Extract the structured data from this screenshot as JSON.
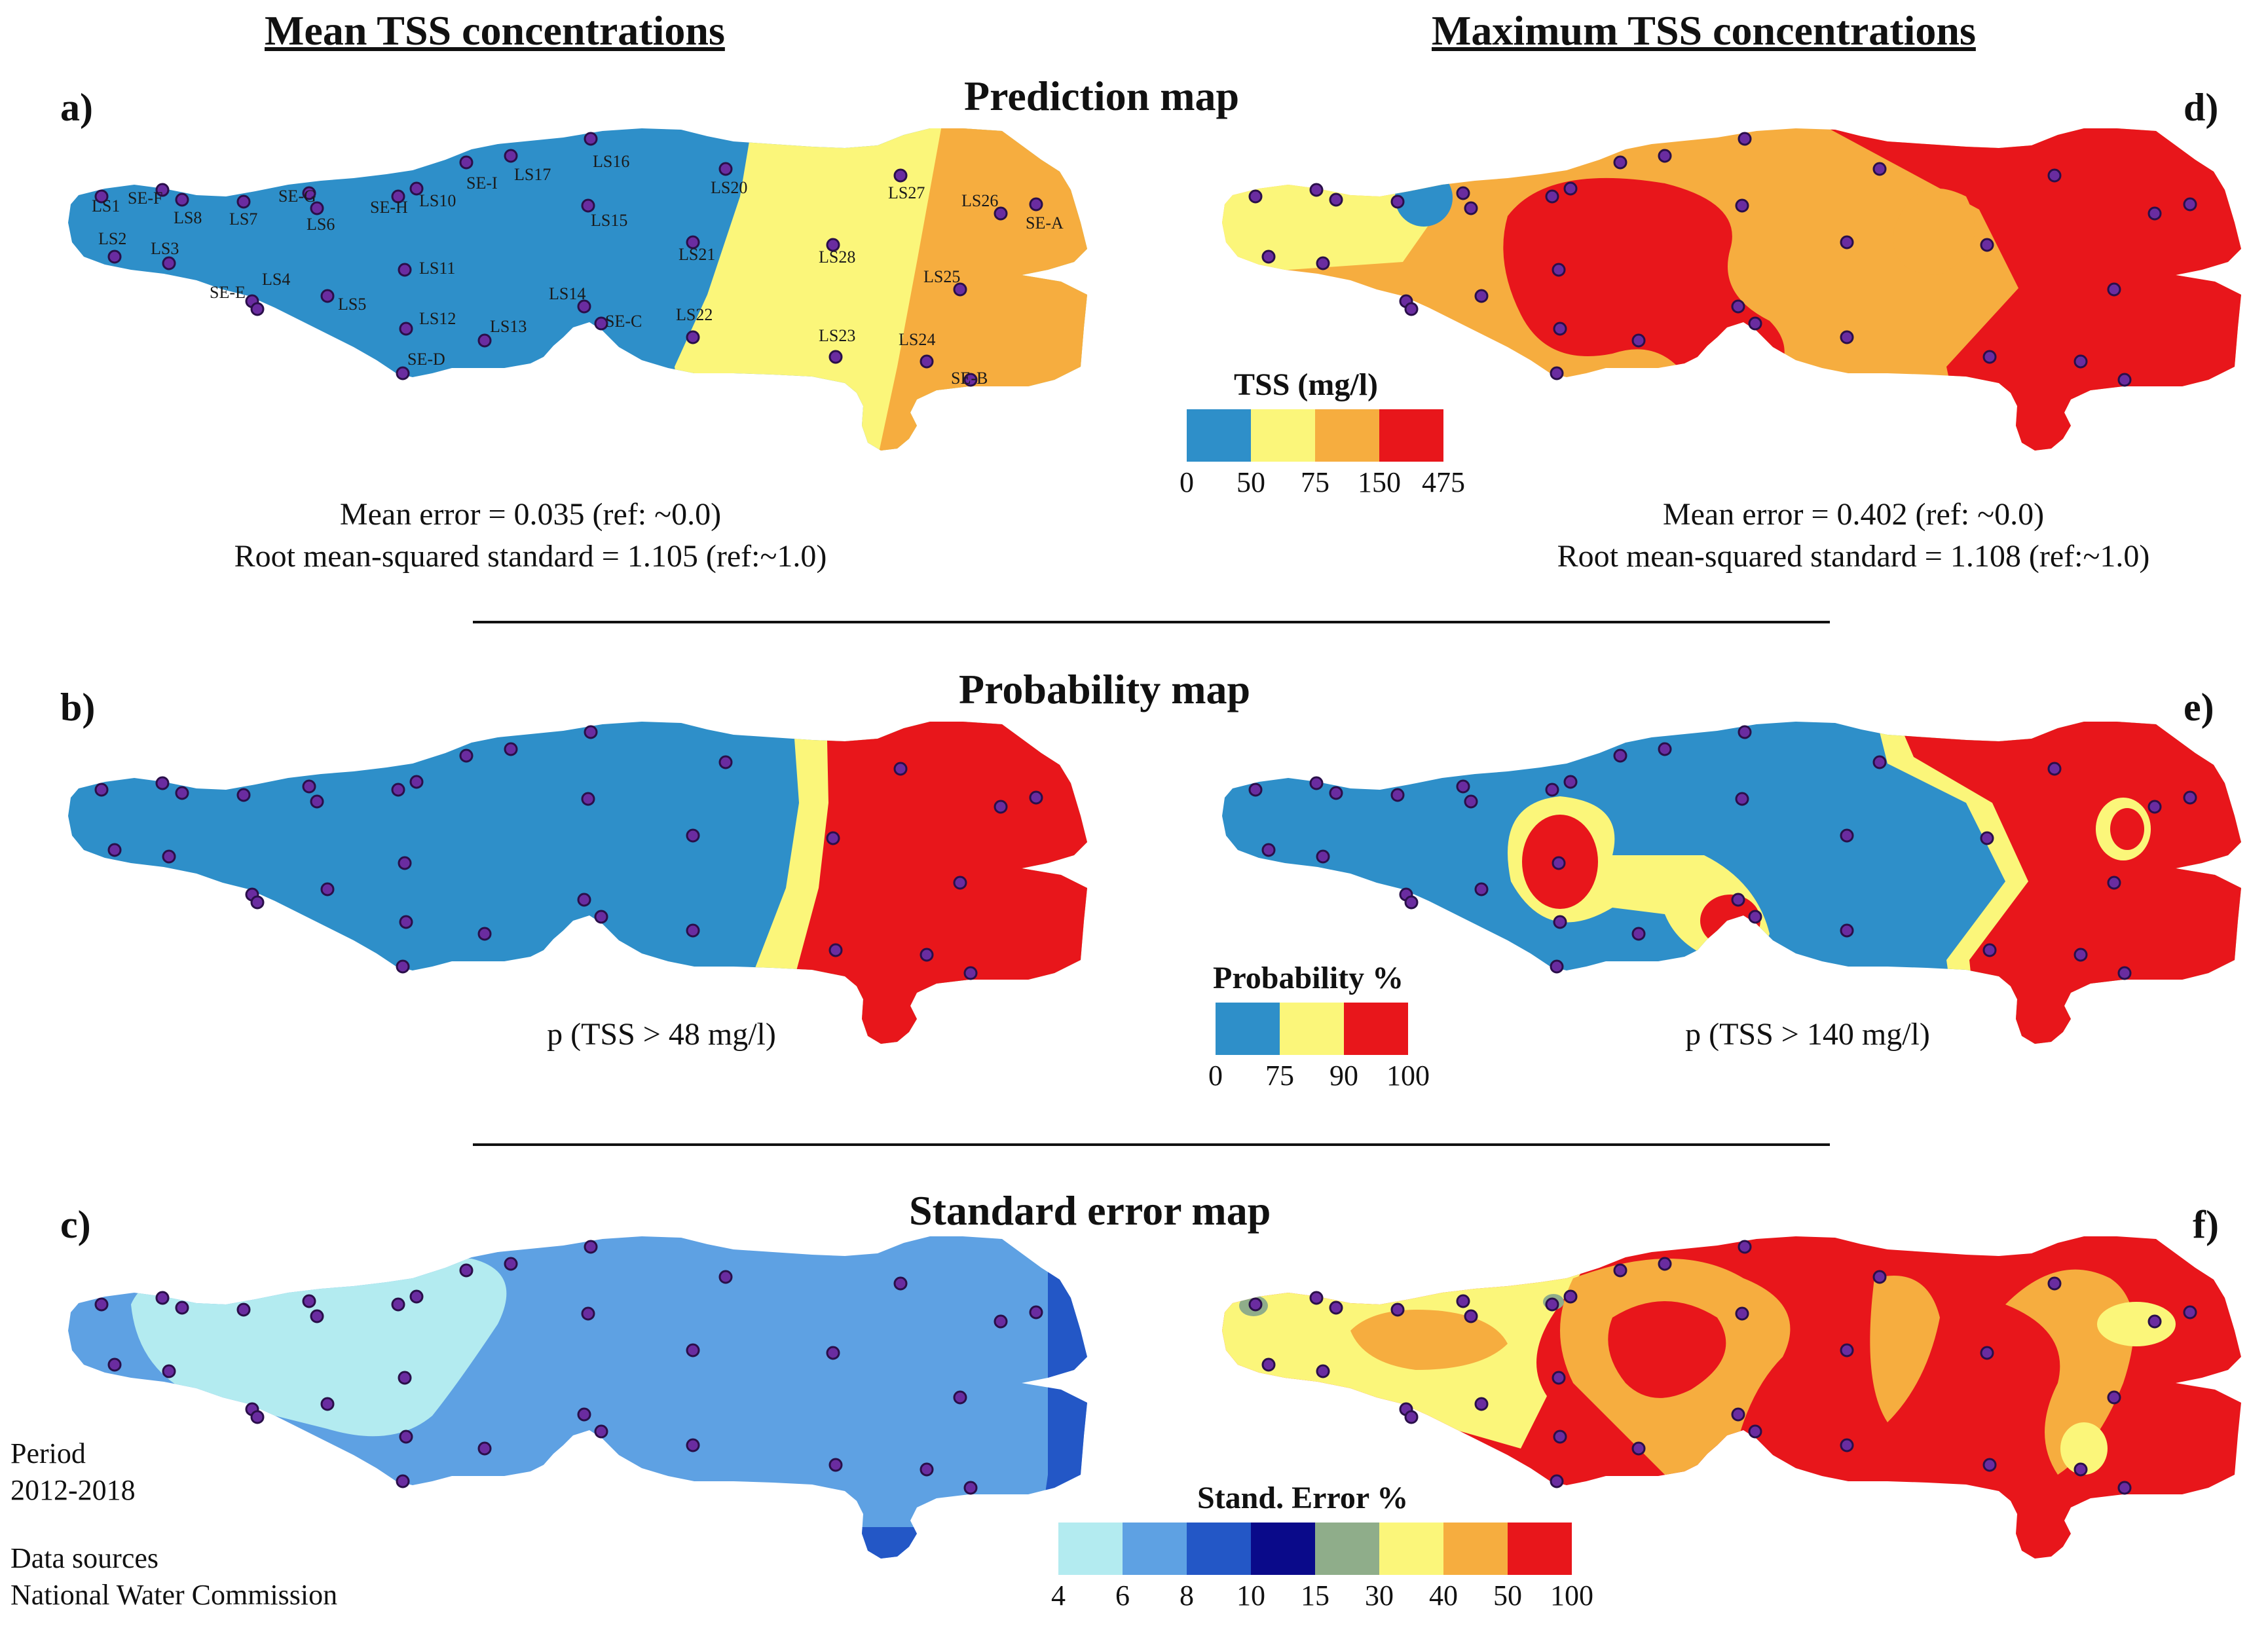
{
  "headers": {
    "left": "Mean TSS concentrations",
    "right": "Maximum TSS concentrations"
  },
  "sections": {
    "prediction": "Prediction map",
    "probability": "Probability map",
    "stderr": "Standard error map"
  },
  "panel_labels": {
    "a": "a)",
    "b": "b)",
    "c": "c)",
    "d": "d)",
    "e": "e)",
    "f": "f)"
  },
  "stats": {
    "a_line1": "Mean error = 0.035 (ref: ~0.0)",
    "a_line2": "Root mean-squared standard =  1.105 (ref:~1.0)",
    "d_line1": "Mean error = 0.402 (ref: ~0.0)",
    "d_line2": "Root mean-squared standard =  1.108 (ref:~1.0)"
  },
  "prob_captions": {
    "b": "p (TSS > 48 mg/l)",
    "e": "p (TSS > 140 mg/l)"
  },
  "legends": {
    "tss": {
      "title": "TSS (mg/l)",
      "colors": [
        "#2e8fc9",
        "#fbf67a",
        "#f6ad3f",
        "#e8161b"
      ],
      "ticks": [
        "0",
        "50",
        "75",
        "150",
        "475"
      ]
    },
    "prob": {
      "title": "Probability %",
      "colors": [
        "#2e8fc9",
        "#fbf67a",
        "#e8161b"
      ],
      "ticks": [
        "0",
        "75",
        "90",
        "100"
      ]
    },
    "se": {
      "title": "Stand. Error %",
      "colors": [
        "#b3ebf0",
        "#5ea1e3",
        "#2357c6",
        "#0a0a8a",
        "#8fad8a",
        "#fbf67a",
        "#f6ad3f",
        "#e8161b"
      ],
      "ticks": [
        "4",
        "6",
        "8",
        "10",
        "15",
        "30",
        "40",
        "50",
        "100"
      ]
    }
  },
  "station_labels": [
    "LS1",
    "LS2",
    "LS3",
    "SE-F",
    "LS8",
    "LS7",
    "SE-G",
    "LS6",
    "SE-H",
    "LS10",
    "SE-I",
    "LS17",
    "LS16",
    "LS11",
    "LS15",
    "LS4",
    "SE-E",
    "LS5",
    "LS12",
    "LS13",
    "LS14",
    "SE-C",
    "SE-D",
    "LS20",
    "LS21",
    "LS22",
    "LS28",
    "LS23",
    "LS27",
    "LS26",
    "SE-A",
    "LS25",
    "LS24",
    "SE-B"
  ],
  "footer": {
    "period_label": "Period",
    "period_value": "2012-2018",
    "sources_label": "Data sources",
    "sources_value": "National Water Commission"
  }
}
